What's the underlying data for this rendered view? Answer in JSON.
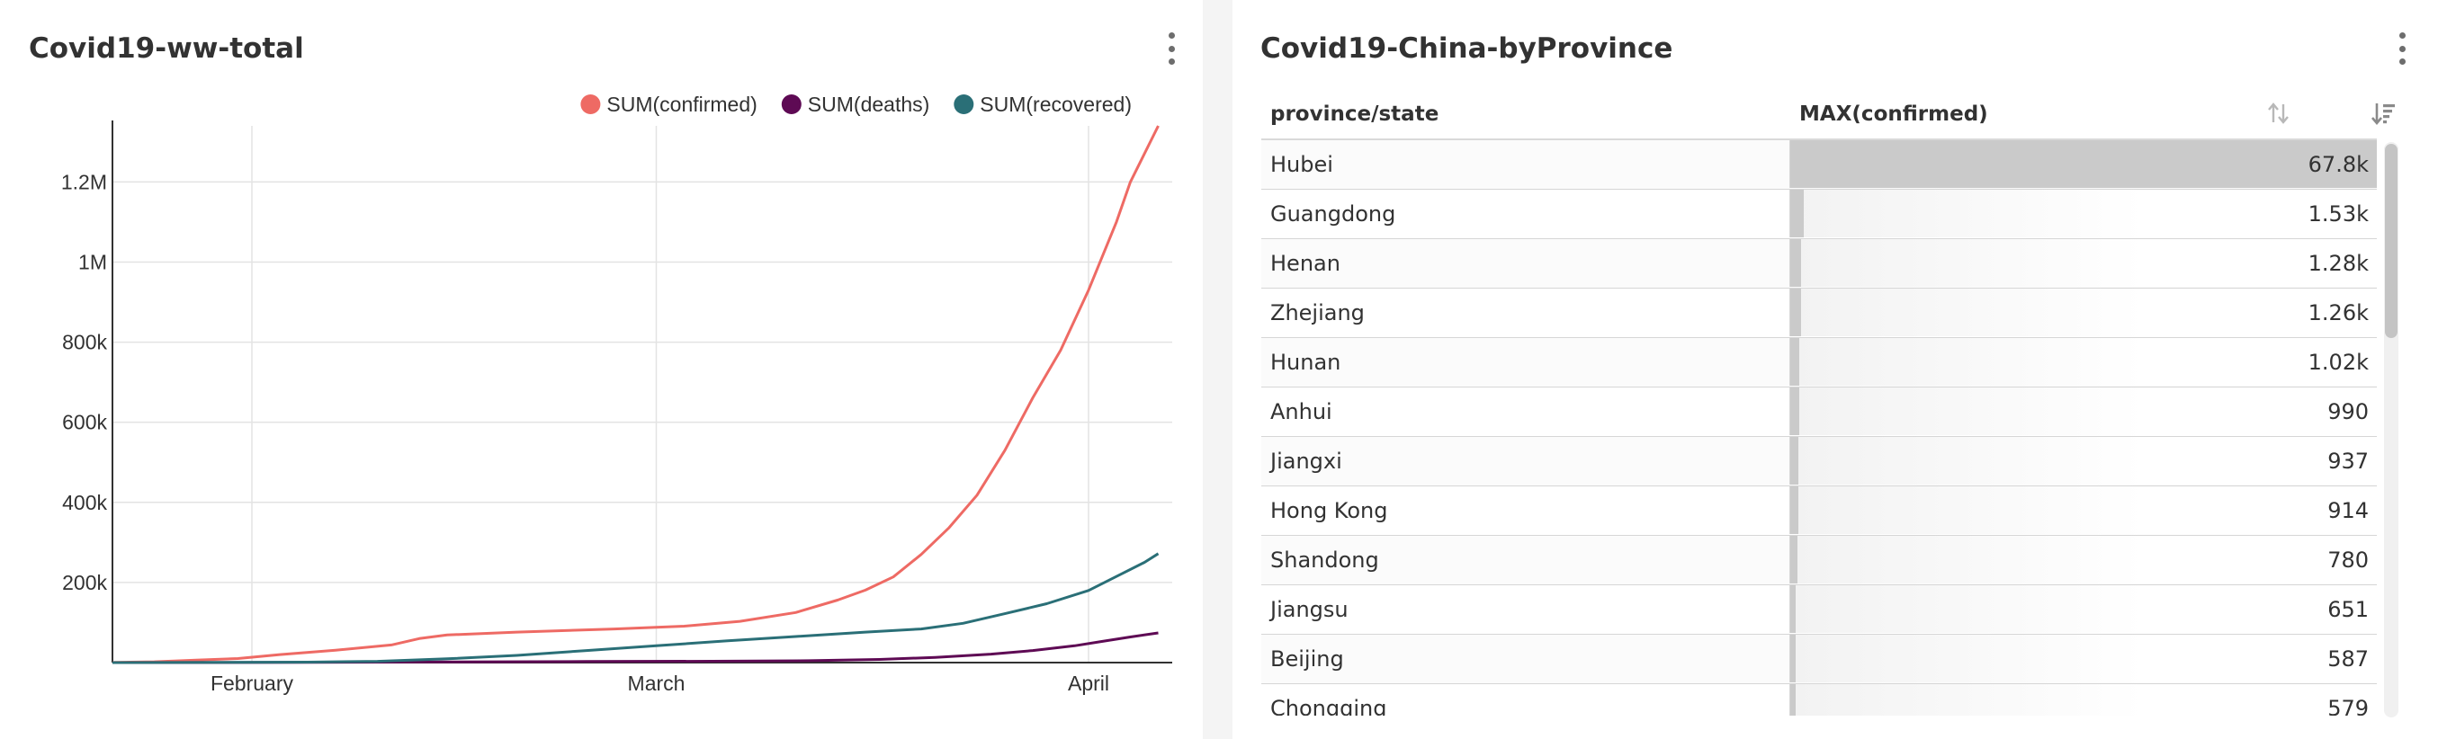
{
  "left_panel": {
    "title": "Covid19-ww-total",
    "menu_icon": "kebab-menu-icon"
  },
  "right_panel": {
    "title": "Covid19-China-byProvince",
    "menu_icon": "kebab-menu-icon",
    "table": {
      "columns": [
        {
          "label": "province/state",
          "sort_icon": "sort-neutral-icon"
        },
        {
          "label": "MAX(confirmed)",
          "sort_icon": "sort-descending-icon"
        }
      ],
      "rows": [
        {
          "province": "Hubei",
          "confirmed_label": "67.8k",
          "confirmed": 67800
        },
        {
          "province": "Guangdong",
          "confirmed_label": "1.53k",
          "confirmed": 1530
        },
        {
          "province": "Henan",
          "confirmed_label": "1.28k",
          "confirmed": 1280
        },
        {
          "province": "Zhejiang",
          "confirmed_label": "1.26k",
          "confirmed": 1260
        },
        {
          "province": "Hunan",
          "confirmed_label": "1.02k",
          "confirmed": 1020
        },
        {
          "province": "Anhui",
          "confirmed_label": "990",
          "confirmed": 990
        },
        {
          "province": "Jiangxi",
          "confirmed_label": "937",
          "confirmed": 937
        },
        {
          "province": "Hong Kong",
          "confirmed_label": "914",
          "confirmed": 914
        },
        {
          "province": "Shandong",
          "confirmed_label": "780",
          "confirmed": 780
        },
        {
          "province": "Jiangsu",
          "confirmed_label": "651",
          "confirmed": 651
        },
        {
          "province": "Beijing",
          "confirmed_label": "587",
          "confirmed": 587
        },
        {
          "province": "Chongqing",
          "confirmed_label": "579",
          "confirmed": 579
        }
      ]
    }
  },
  "chart_data": {
    "type": "line",
    "title": "Covid19-ww-total",
    "xlabel": "",
    "ylabel": "",
    "grid": true,
    "legend_position": "top-right",
    "x_range": [
      "2020-01-22",
      "2020-04-07"
    ],
    "ylim": [
      0,
      1340000
    ],
    "y_ticks": [
      {
        "value": 200000,
        "label": "200k"
      },
      {
        "value": 400000,
        "label": "400k"
      },
      {
        "value": 600000,
        "label": "600k"
      },
      {
        "value": 800000,
        "label": "800k"
      },
      {
        "value": 1000000,
        "label": "1M"
      },
      {
        "value": 1200000,
        "label": "1.2M"
      }
    ],
    "x_ticks": [
      {
        "value": "2020-02-01",
        "label": "February"
      },
      {
        "value": "2020-03-01",
        "label": "March"
      },
      {
        "value": "2020-04-01",
        "label": "April"
      }
    ],
    "series": [
      {
        "name": "SUM(confirmed)",
        "color": "#ee6a64",
        "points": [
          [
            "2020-01-22",
            555
          ],
          [
            "2020-01-25",
            2000
          ],
          [
            "2020-01-28",
            6000
          ],
          [
            "2020-01-31",
            10000
          ],
          [
            "2020-02-03",
            20000
          ],
          [
            "2020-02-07",
            31000
          ],
          [
            "2020-02-11",
            44000
          ],
          [
            "2020-02-13",
            60000
          ],
          [
            "2020-02-15",
            69000
          ],
          [
            "2020-02-20",
            76000
          ],
          [
            "2020-02-27",
            84000
          ],
          [
            "2020-03-03",
            91000
          ],
          [
            "2020-03-07",
            103000
          ],
          [
            "2020-03-11",
            125000
          ],
          [
            "2020-03-14",
            156000
          ],
          [
            "2020-03-16",
            181000
          ],
          [
            "2020-03-18",
            214000
          ],
          [
            "2020-03-20",
            270000
          ],
          [
            "2020-03-22",
            337000
          ],
          [
            "2020-03-24",
            418000
          ],
          [
            "2020-03-26",
            530000
          ],
          [
            "2020-03-28",
            661000
          ],
          [
            "2020-03-30",
            780000
          ],
          [
            "2020-04-01",
            930000
          ],
          [
            "2020-04-03",
            1100000
          ],
          [
            "2020-04-04",
            1200000
          ],
          [
            "2020-04-06",
            1340000
          ]
        ]
      },
      {
        "name": "SUM(deaths)",
        "color": "#5e0a54",
        "points": [
          [
            "2020-01-22",
            17
          ],
          [
            "2020-02-05",
            500
          ],
          [
            "2020-02-15",
            1500
          ],
          [
            "2020-02-25",
            2700
          ],
          [
            "2020-03-05",
            3300
          ],
          [
            "2020-03-12",
            4700
          ],
          [
            "2020-03-17",
            7900
          ],
          [
            "2020-03-21",
            13000
          ],
          [
            "2020-03-25",
            21000
          ],
          [
            "2020-03-28",
            30000
          ],
          [
            "2020-03-31",
            42000
          ],
          [
            "2020-04-02",
            53000
          ],
          [
            "2020-04-04",
            64000
          ],
          [
            "2020-04-06",
            74000
          ]
        ]
      },
      {
        "name": "SUM(recovered)",
        "color": "#2a6f77",
        "points": [
          [
            "2020-01-22",
            28
          ],
          [
            "2020-02-05",
            1100
          ],
          [
            "2020-02-10",
            3200
          ],
          [
            "2020-02-15",
            9400
          ],
          [
            "2020-02-20",
            18000
          ],
          [
            "2020-02-25",
            30000
          ],
          [
            "2020-03-01",
            42000
          ],
          [
            "2020-03-06",
            54000
          ],
          [
            "2020-03-11",
            65000
          ],
          [
            "2020-03-16",
            76000
          ],
          [
            "2020-03-20",
            84000
          ],
          [
            "2020-03-23",
            98000
          ],
          [
            "2020-03-26",
            122000
          ],
          [
            "2020-03-29",
            147000
          ],
          [
            "2020-04-01",
            180000
          ],
          [
            "2020-04-03",
            215000
          ],
          [
            "2020-04-05",
            250000
          ],
          [
            "2020-04-06",
            272000
          ]
        ]
      }
    ]
  }
}
